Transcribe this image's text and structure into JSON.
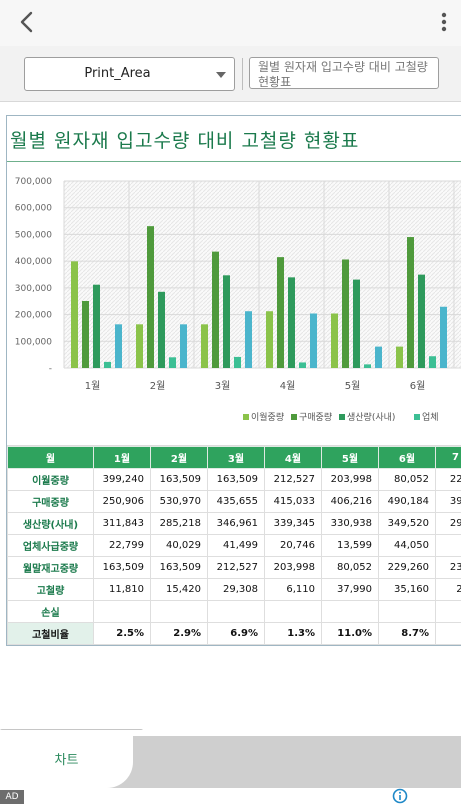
{
  "toolbar": {
    "name_box_value": "Print_Area",
    "formula_value": "월별 원자재 입고수량 대비 고철량 현황표"
  },
  "sheet": {
    "title": "월별 원자재 입고수량 대비 고철량 현황표"
  },
  "chart_data": {
    "type": "bar",
    "categories": [
      "1월",
      "2월",
      "3월",
      "4월",
      "5월",
      "6월"
    ],
    "ylim": [
      0,
      700000
    ],
    "y_ticks": [
      "700,000",
      "600,000",
      "500,000",
      "400,000",
      "300,000",
      "200,000",
      "100,000",
      "-"
    ],
    "grid": true,
    "legend_position": "bottom-right",
    "series": [
      {
        "name": "이월중량",
        "color": "#8bc34a",
        "values": [
          399240,
          163509,
          163509,
          212527,
          203998,
          80052
        ]
      },
      {
        "name": "구매중량",
        "color": "#4f9a3c",
        "values": [
          250906,
          530970,
          435655,
          415033,
          406216,
          490184
        ]
      },
      {
        "name": "생산량(사내)",
        "color": "#2e9a5c",
        "values": [
          311843,
          285218,
          346961,
          339345,
          330938,
          349520
        ]
      },
      {
        "name": "업체사급중량",
        "color": "#3cbf94",
        "values": [
          22799,
          40029,
          41499,
          20746,
          13599,
          44050
        ]
      },
      {
        "name": "월말재고중량",
        "color": "#4bb5cc",
        "values": [
          163509,
          163509,
          212527,
          203998,
          80052,
          229260
        ]
      }
    ],
    "legend": [
      "이월중량",
      "구매중량",
      "생산량(사내)",
      "업체"
    ]
  },
  "table": {
    "headers": [
      "월",
      "1월",
      "2월",
      "3월",
      "4월",
      "5월",
      "6월",
      "7"
    ],
    "rows": [
      {
        "label": "이월중량",
        "cells": [
          "399,240",
          "163,509",
          "163,509",
          "212,527",
          "203,998",
          "80,052",
          "229"
        ]
      },
      {
        "label": "구매중량",
        "cells": [
          "250,906",
          "530,970",
          "435,655",
          "415,033",
          "406,216",
          "490,184",
          "398"
        ]
      },
      {
        "label": "생산량(사내)",
        "cells": [
          "311,843",
          "285,218",
          "346,961",
          "339,345",
          "330,938",
          "349,520",
          "298"
        ]
      },
      {
        "label": "업체사급중량",
        "cells": [
          "22,799",
          "40,029",
          "41,499",
          "20,746",
          "13,599",
          "44,050",
          "2"
        ]
      },
      {
        "label": "월말재고중량",
        "cells": [
          "163,509",
          "163,509",
          "212,527",
          "203,998",
          "80,052",
          "229,260",
          "230"
        ]
      },
      {
        "label": "고철량",
        "cells": [
          "11,810",
          "15,420",
          "29,308",
          "6,110",
          "37,990",
          "35,160",
          "20"
        ]
      },
      {
        "label": "손실",
        "cells": [
          "",
          "",
          "",
          "",
          "",
          "",
          ""
        ]
      },
      {
        "label": "고철비율",
        "cells": [
          "2.5%",
          "2.9%",
          "6.9%",
          "1.3%",
          "11.0%",
          "8.7%",
          ""
        ]
      }
    ]
  },
  "tabs": {
    "active_label": "차트"
  },
  "ad": {
    "tag": "AD"
  }
}
